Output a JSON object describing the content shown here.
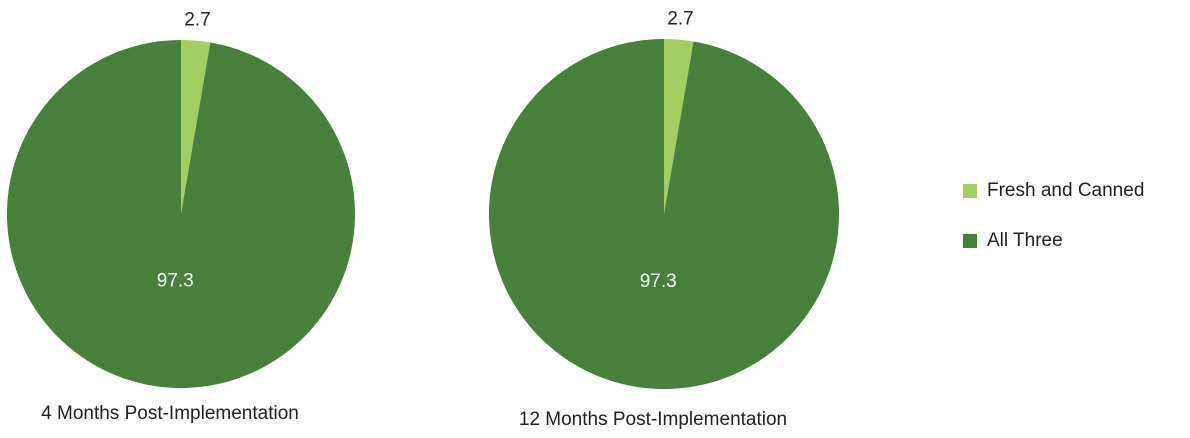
{
  "chart_data": [
    {
      "type": "pie",
      "title": "4 Months Post-Implementation",
      "categories": [
        "Fresh and Canned",
        "All Three"
      ],
      "values": [
        2.7,
        97.3
      ],
      "colors": [
        "#a3cf62",
        "#46803a"
      ]
    },
    {
      "type": "pie",
      "title": "12 Months Post-Implementation",
      "categories": [
        "Fresh and Canned",
        "All Three"
      ],
      "values": [
        2.7,
        97.3
      ],
      "colors": [
        "#a3cf62",
        "#46803a"
      ]
    }
  ]
}
